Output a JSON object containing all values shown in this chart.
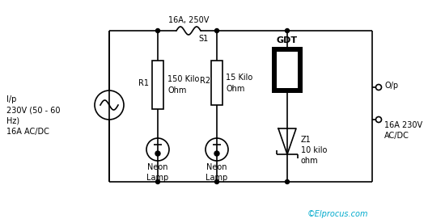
{
  "bg_color": "#ffffff",
  "line_color": "#000000",
  "copyright": "©Elprocus.com",
  "fuse_label": "16A, 250V",
  "fuse_label2": "S1",
  "gdt_label": "GDT",
  "r1_label": "R1",
  "r1_val": "150 Kilo\nOhm",
  "r2_label": "R2",
  "r2_val": "15 Kilo\nOhm",
  "z1_label": "Z1\n10 kilo\nohm",
  "neon1_label": "Neon\nLamp",
  "neon2_label": "Neon\nLamp",
  "input_label": "I/p\n230V (50 - 60\nHz)\n16A AC/DC",
  "output_label1": "O/p",
  "output_label2": "16A 230V\nAC/DC",
  "lw": 1.2
}
